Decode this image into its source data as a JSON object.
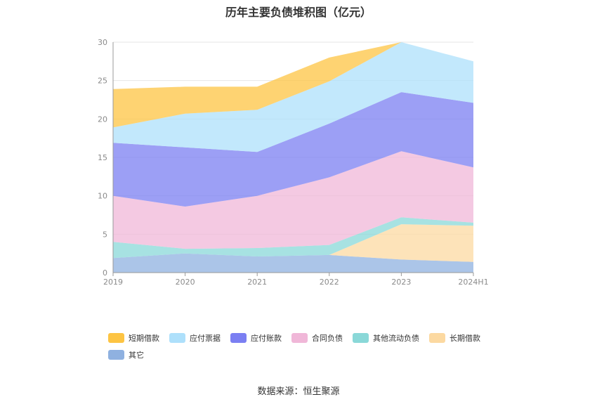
{
  "chart_data": {
    "type": "area",
    "stacked": true,
    "title": "历年主要负债堆积图（亿元）",
    "categories": [
      "2019",
      "2020",
      "2021",
      "2022",
      "2023",
      "2024H1"
    ],
    "ylim": [
      0,
      30
    ],
    "yticks": [
      0,
      5,
      10,
      15,
      20,
      25,
      30
    ],
    "grid": true,
    "legend_position": "bottom",
    "series": [
      {
        "name": "其它",
        "color": "#8fb1e0",
        "values": [
          1.9,
          2.5,
          2.1,
          2.3,
          1.7,
          1.4
        ]
      },
      {
        "name": "长期借款",
        "color": "#fcd9a1",
        "values": [
          0,
          0,
          0,
          0,
          4.6,
          4.7
        ]
      },
      {
        "name": "其他流动负债",
        "color": "#8ad8d8",
        "values": [
          2.1,
          0.6,
          1.1,
          1.3,
          0.9,
          0.4
        ]
      },
      {
        "name": "合同负债",
        "color": "#f0b7d8",
        "values": [
          6.0,
          5.5,
          6.8,
          8.8,
          8.6,
          7.2
        ]
      },
      {
        "name": "应付账款",
        "color": "#7b7ff2",
        "values": [
          6.9,
          7.7,
          5.7,
          7.0,
          7.7,
          8.4
        ]
      },
      {
        "name": "应付票据",
        "color": "#aee0fb",
        "values": [
          2.0,
          4.4,
          5.5,
          5.5,
          6.5,
          5.4
        ]
      },
      {
        "name": "短期借款",
        "color": "#fdc443",
        "values": [
          5.0,
          3.5,
          3.0,
          3.1,
          0,
          0
        ]
      }
    ]
  },
  "legend": {
    "items": [
      {
        "name": "短期借款",
        "color": "#fdc443"
      },
      {
        "name": "应付票据",
        "color": "#aee0fb"
      },
      {
        "name": "应付账款",
        "color": "#7b7ff2"
      },
      {
        "name": "合同负债",
        "color": "#f0b7d8"
      },
      {
        "name": "其他流动负债",
        "color": "#8ad8d8"
      },
      {
        "name": "长期借款",
        "color": "#fcd9a1"
      },
      {
        "name": "其它",
        "color": "#8fb1e0"
      }
    ]
  },
  "source_text": "数据来源：恒生聚源"
}
